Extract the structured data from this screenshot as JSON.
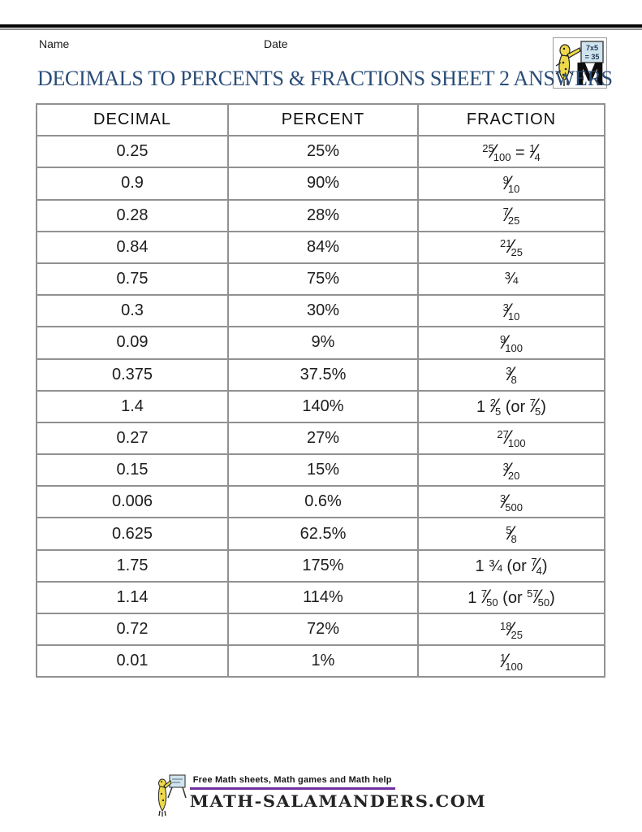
{
  "header": {
    "name_label": "Name",
    "date_label": "Date",
    "title": "DECIMALS TO PERCENTS & FRACTIONS SHEET 2 ANSWERS"
  },
  "logo": {
    "board_line1": "7x5",
    "board_line2": "= 35",
    "letter": "M"
  },
  "table": {
    "headers": [
      "DECIMAL",
      "PERCENT",
      "FRACTION"
    ],
    "rows": [
      {
        "decimal": "0.25",
        "percent": "25%",
        "fraction": "{25/100} = {1/4}",
        "example": true
      },
      {
        "decimal": "0.9",
        "percent": "90%",
        "fraction": "{9/10}",
        "example": false
      },
      {
        "decimal": "0.28",
        "percent": "28%",
        "fraction": "{7/25}",
        "example": false
      },
      {
        "decimal": "0.84",
        "percent": "84%",
        "fraction": "{21/25}",
        "example": false
      },
      {
        "decimal": "0.75",
        "percent": "75%",
        "fraction": "¾",
        "example": false
      },
      {
        "decimal": "0.3",
        "percent": "30%",
        "fraction": "{3/10}",
        "example": false
      },
      {
        "decimal": "0.09",
        "percent": "9%",
        "fraction": "{9/100}",
        "example": false
      },
      {
        "decimal": "0.375",
        "percent": "37.5%",
        "fraction": "{3/8}",
        "example": false
      },
      {
        "decimal": "1.4",
        "percent": "140%",
        "fraction": "1 {2/5} (or {7/5})",
        "example": false
      },
      {
        "decimal": "0.27",
        "percent": "27%",
        "fraction": "{27/100}",
        "example": false
      },
      {
        "decimal": "0.15",
        "percent": "15%",
        "fraction": "{3/20}",
        "example": false
      },
      {
        "decimal": "0.006",
        "percent": "0.6%",
        "fraction": "{3/500}",
        "example": false
      },
      {
        "decimal": "0.625",
        "percent": "62.5%",
        "fraction": "{5/8}",
        "example": false
      },
      {
        "decimal": "1.75",
        "percent": "175%",
        "fraction": "1 ¾ (or {7/4})",
        "example": false
      },
      {
        "decimal": "1.14",
        "percent": "114%",
        "fraction": "1 {7/50} (or {57/50})",
        "example": false
      },
      {
        "decimal": "0.72",
        "percent": "72%",
        "fraction": "{18/25}",
        "example": false
      },
      {
        "decimal": "0.01",
        "percent": "1%",
        "fraction": "{1/100}",
        "example": false
      }
    ]
  },
  "footer": {
    "tagline": "Free Math sheets, Math games and Math help",
    "site": "MATH-SALAMANDERS.COM"
  },
  "colors": {
    "answer_red": "#fb2318",
    "title_blue": "#2a4c77",
    "underline_purple": "#7030A0",
    "salamander_yellow": "#edd94a",
    "board_blue": "#cfe4ef",
    "table_border_gray": "#919191"
  }
}
